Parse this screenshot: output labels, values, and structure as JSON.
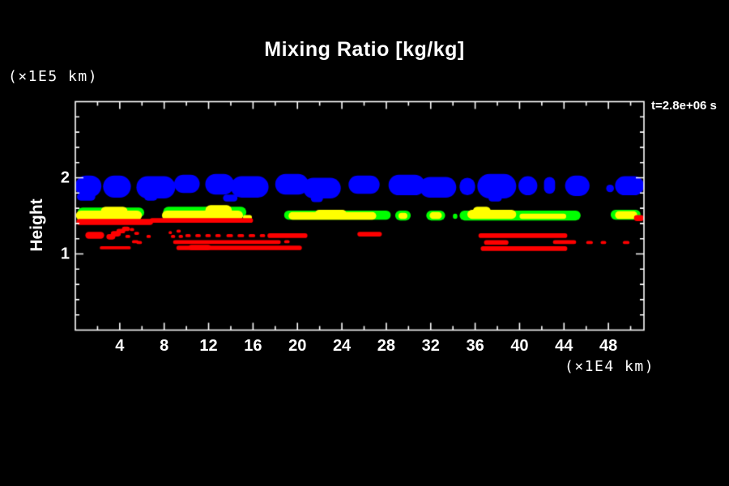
{
  "window": {
    "background": "#000000",
    "foreground": "#ffffff"
  },
  "header": {
    "title": "Mixing Ratio [kg/kg]",
    "timestamp": "t=2.8e+06 s"
  },
  "axes": {
    "y_title": "Height",
    "y_units_label": "(×1E5 km)",
    "x_units_label": "(×1E4 km)"
  },
  "chart_data": {
    "type": "heatmap",
    "title": "Mixing Ratio [kg/kg]",
    "xlabel": "(×1E4 km)",
    "ylabel": "Height (×1E5 km)",
    "annotation": "t=2.8e+06 s",
    "grid": false,
    "background": "#000000",
    "frame_color": "#ffffff",
    "x_axis": {
      "min": 0,
      "max": 51.2,
      "major_step": 4,
      "minor_step": 2,
      "tick_labels": [
        "4",
        "8",
        "12",
        "16",
        "20",
        "24",
        "28",
        "32",
        "36",
        "40",
        "44",
        "48"
      ]
    },
    "y_axis": {
      "min": 0,
      "max": 3,
      "major_ticks": [
        1,
        2
      ],
      "minor_step": 0.2,
      "tick_labels": [
        "1",
        "2"
      ]
    },
    "layers": [
      {
        "name": "upper-blue-band",
        "color": "#0000ff",
        "shapes": [
          [
            0.0,
            2.35,
            1.75,
            2.03
          ],
          [
            0.15,
            1.8,
            1.7,
            1.8
          ],
          [
            2.5,
            5.0,
            1.74,
            2.03
          ],
          [
            5.5,
            9.0,
            1.73,
            2.02
          ],
          [
            6.2,
            7.4,
            1.7,
            1.8
          ],
          [
            8.9,
            11.2,
            1.8,
            2.04
          ],
          [
            11.7,
            14.3,
            1.78,
            2.05
          ],
          [
            14.0,
            17.4,
            1.74,
            2.02
          ],
          [
            13.3,
            14.6,
            1.69,
            1.78
          ],
          [
            18.0,
            21.0,
            1.78,
            2.05
          ],
          [
            20.5,
            23.9,
            1.73,
            2.0
          ],
          [
            21.2,
            22.3,
            1.68,
            1.78
          ],
          [
            24.6,
            27.4,
            1.79,
            2.03
          ],
          [
            28.2,
            31.5,
            1.77,
            2.04
          ],
          [
            31.0,
            34.3,
            1.74,
            2.01
          ],
          [
            34.6,
            36.0,
            1.77,
            2.0
          ],
          [
            36.2,
            39.7,
            1.73,
            2.05
          ],
          [
            37.2,
            38.4,
            1.69,
            1.78
          ],
          [
            39.9,
            41.6,
            1.77,
            2.02
          ],
          [
            42.2,
            43.2,
            1.79,
            2.01
          ],
          [
            44.1,
            46.3,
            1.76,
            2.03
          ],
          [
            47.8,
            48.5,
            1.81,
            1.91
          ],
          [
            48.6,
            51.2,
            1.77,
            2.02
          ]
        ]
      },
      {
        "name": "mid-green-band",
        "color": "#00ff00",
        "shapes": [
          [
            0.2,
            6.2,
            1.48,
            1.61
          ],
          [
            7.9,
            15.4,
            1.48,
            1.62
          ],
          [
            18.8,
            28.4,
            1.45,
            1.57
          ],
          [
            28.8,
            30.2,
            1.44,
            1.57
          ],
          [
            31.6,
            33.3,
            1.44,
            1.57
          ],
          [
            34.0,
            34.4,
            1.46,
            1.53
          ],
          [
            34.6,
            45.5,
            1.44,
            1.57
          ],
          [
            48.2,
            50.9,
            1.45,
            1.58
          ]
        ]
      },
      {
        "name": "mid-yellow-band",
        "color": "#ffff00",
        "shapes": [
          [
            0.05,
            6.0,
            1.44,
            1.57
          ],
          [
            2.3,
            4.7,
            1.5,
            1.62
          ],
          [
            7.8,
            15.1,
            1.44,
            1.57
          ],
          [
            11.7,
            14.1,
            1.5,
            1.64
          ],
          [
            15.1,
            15.9,
            1.45,
            1.51
          ],
          [
            19.2,
            27.1,
            1.45,
            1.55
          ],
          [
            21.6,
            24.4,
            1.48,
            1.58
          ],
          [
            29.1,
            29.9,
            1.46,
            1.54
          ],
          [
            31.9,
            33.0,
            1.46,
            1.55
          ],
          [
            35.3,
            39.7,
            1.46,
            1.58
          ],
          [
            35.8,
            37.4,
            1.51,
            1.62
          ],
          [
            40.0,
            44.2,
            1.46,
            1.53
          ],
          [
            48.6,
            50.6,
            1.46,
            1.56
          ]
        ]
      },
      {
        "name": "lower-red-band",
        "color": "#ff0000",
        "shapes": [
          [
            0.1,
            7.0,
            1.38,
            1.46
          ],
          [
            6.7,
            16.0,
            1.41,
            1.47
          ],
          [
            50.3,
            51.2,
            1.43,
            1.51
          ],
          [
            0.9,
            2.6,
            1.2,
            1.29
          ],
          [
            2.8,
            3.6,
            1.19,
            1.26
          ],
          [
            3.2,
            4.1,
            1.23,
            1.3
          ],
          [
            3.7,
            4.5,
            1.27,
            1.33
          ],
          [
            4.2,
            4.9,
            1.3,
            1.36
          ],
          [
            4.9,
            5.3,
            1.3,
            1.34
          ],
          [
            4.5,
            4.95,
            1.21,
            1.25
          ],
          [
            5.3,
            5.75,
            1.25,
            1.29
          ],
          [
            5.5,
            6.0,
            1.13,
            1.17
          ],
          [
            6.4,
            6.8,
            1.21,
            1.25
          ],
          [
            8.4,
            8.7,
            1.26,
            1.3
          ],
          [
            9.1,
            9.5,
            1.28,
            1.32
          ],
          [
            8.6,
            9.0,
            1.21,
            1.25
          ],
          [
            9.3,
            9.7,
            1.21,
            1.25
          ],
          [
            9.9,
            10.4,
            1.22,
            1.26
          ],
          [
            10.8,
            11.3,
            1.22,
            1.26
          ],
          [
            11.7,
            12.2,
            1.22,
            1.26
          ],
          [
            12.6,
            13.1,
            1.22,
            1.26
          ],
          [
            13.6,
            14.2,
            1.22,
            1.26
          ],
          [
            14.6,
            15.2,
            1.22,
            1.26
          ],
          [
            15.6,
            16.2,
            1.22,
            1.26
          ],
          [
            16.6,
            17.1,
            1.22,
            1.26
          ],
          [
            17.3,
            20.9,
            1.21,
            1.27
          ],
          [
            5.1,
            5.7,
            1.14,
            1.18
          ],
          [
            8.8,
            18.5,
            1.13,
            1.18
          ],
          [
            18.8,
            19.3,
            1.14,
            1.18
          ],
          [
            2.2,
            5.0,
            1.06,
            1.1
          ],
          [
            9.1,
            20.4,
            1.05,
            1.11
          ],
          [
            10.2,
            12.2,
            1.05,
            1.12
          ],
          [
            25.4,
            27.6,
            1.23,
            1.29
          ],
          [
            36.3,
            44.3,
            1.21,
            1.27
          ],
          [
            36.8,
            39.0,
            1.12,
            1.18
          ],
          [
            43.0,
            45.1,
            1.13,
            1.18
          ],
          [
            46.0,
            46.6,
            1.13,
            1.17
          ],
          [
            47.3,
            47.8,
            1.13,
            1.17
          ],
          [
            49.3,
            49.9,
            1.13,
            1.17
          ],
          [
            36.5,
            44.3,
            1.04,
            1.1
          ]
        ]
      }
    ]
  }
}
